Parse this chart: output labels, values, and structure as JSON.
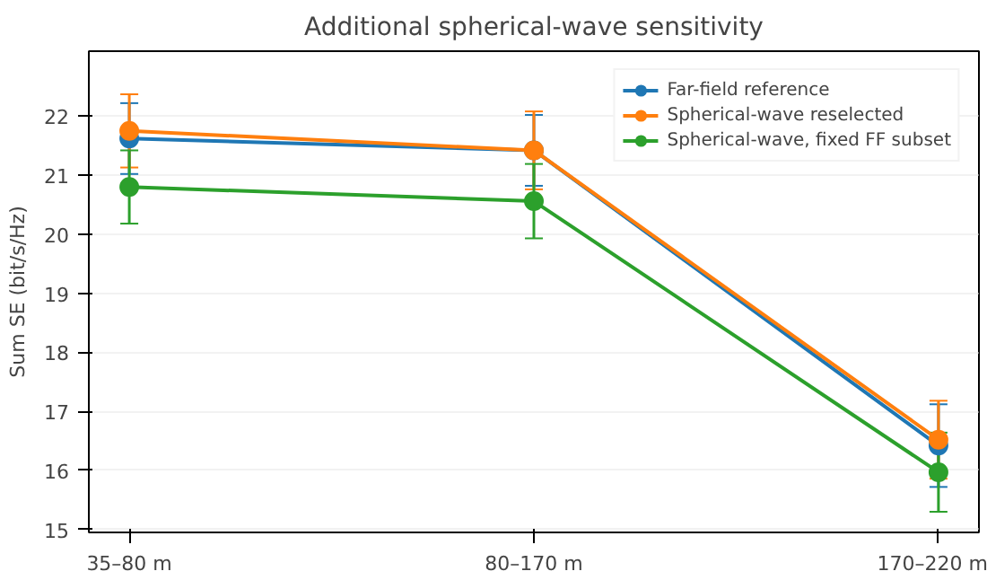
{
  "chart_data": {
    "type": "line",
    "title": "Additional spherical-wave sensitivity",
    "ylabel": "Sum SE (bit/s/Hz)",
    "categories": [
      "35–80 m",
      "80–170 m",
      "170–220 m"
    ],
    "series": [
      {
        "name": "Far-field reference",
        "color": "#1f77b4",
        "values": [
          21.62,
          21.42,
          16.42
        ],
        "errors": [
          0.6,
          0.6,
          0.7
        ]
      },
      {
        "name": "Spherical-wave reselected",
        "color": "#ff7f0e",
        "values": [
          21.75,
          21.42,
          16.52
        ],
        "errors": [
          0.62,
          0.66,
          0.66
        ]
      },
      {
        "name": "Spherical-wave, fixed FF subset",
        "color": "#2ca02c",
        "values": [
          20.8,
          20.56,
          15.97
        ],
        "errors": [
          0.62,
          0.63,
          0.67
        ]
      }
    ],
    "ylim": [
      14.95,
      23.1
    ],
    "yticks": [
      15,
      16,
      17,
      18,
      19,
      20,
      21,
      22
    ],
    "grid": "y",
    "legend": "top right",
    "marker": "circle",
    "line_style": "solid"
  }
}
